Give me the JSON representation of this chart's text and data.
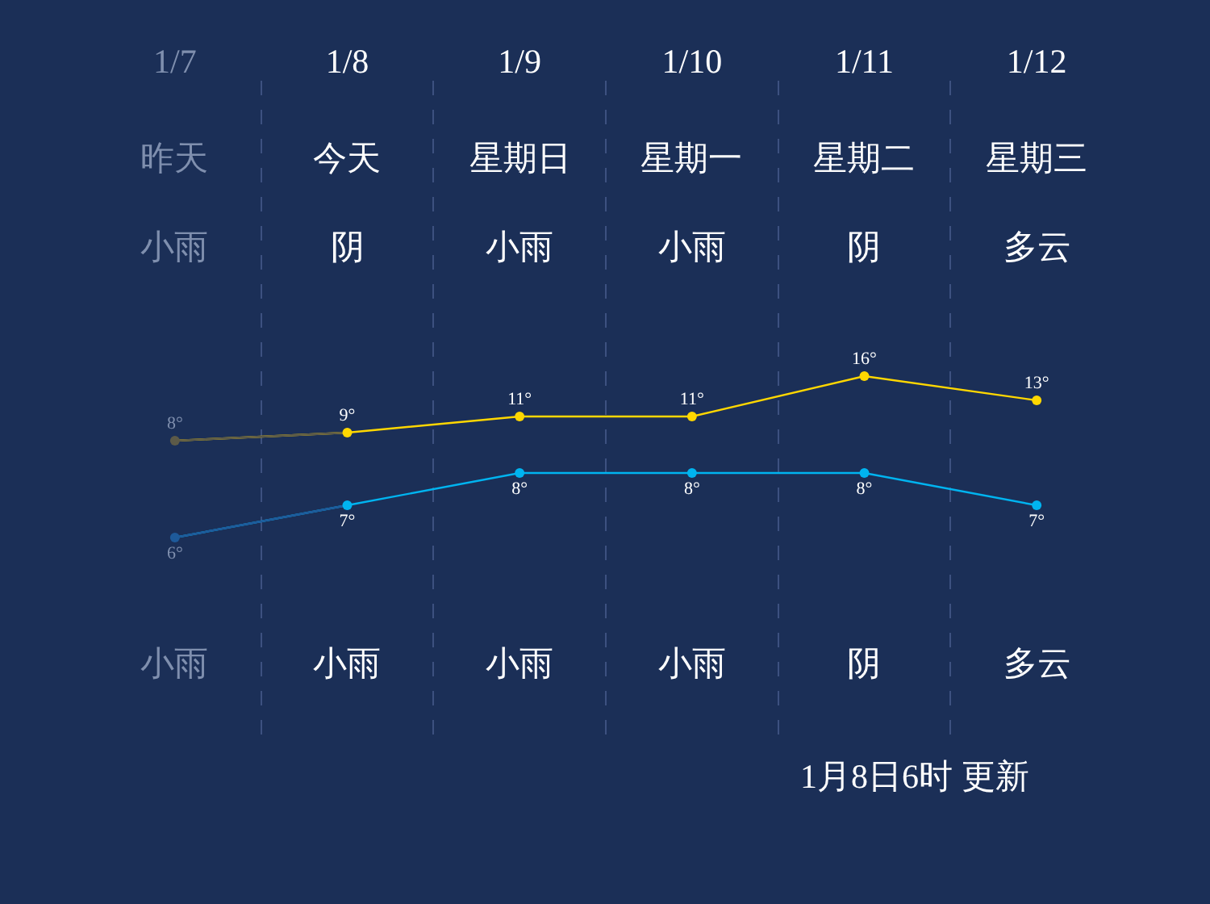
{
  "chart_data": {
    "type": "line",
    "categories": [
      "1/7",
      "1/8",
      "1/9",
      "1/10",
      "1/11",
      "1/12"
    ],
    "series": [
      {
        "color": "#ffd700",
        "colors": [
          "#5c5a48",
          "#ffd700",
          "#ffd700",
          "#ffd700",
          "#ffd700",
          "#ffd700"
        ],
        "values": [
          8,
          9,
          11,
          11,
          16,
          13
        ],
        "value_labels": [
          "8°",
          "9°",
          "11°",
          "11°",
          "16°",
          "13°"
        ]
      },
      {
        "axis": "y2",
        "color": "#00b4f0",
        "colors": [
          "#1e5a9a",
          "#00b4f0",
          "#00b4f0",
          "#00b4f0",
          "#00b4f0",
          "#00b4f0"
        ],
        "values": [
          6,
          7,
          8,
          8,
          8,
          7
        ],
        "value_labels": [
          "6°",
          "7°",
          "8°",
          "8°",
          "8°",
          "7°"
        ]
      }
    ],
    "ylim": [
      -28.4,
      52.6
    ],
    "y2lim": [
      -0.1,
      20.15
    ],
    "tick_labels": "x",
    "grid": "x",
    "marker": "circle",
    "annotations": [
      "昨天",
      "今天",
      "星期日",
      "星期一",
      "星期二",
      "星期三",
      "小雨",
      "阴",
      "小雨",
      "小雨",
      "阴",
      "多云",
      "小雨",
      "小雨",
      "小雨",
      "小雨",
      "阴",
      "多云",
      "1月8日6时 更新"
    ]
  }
}
